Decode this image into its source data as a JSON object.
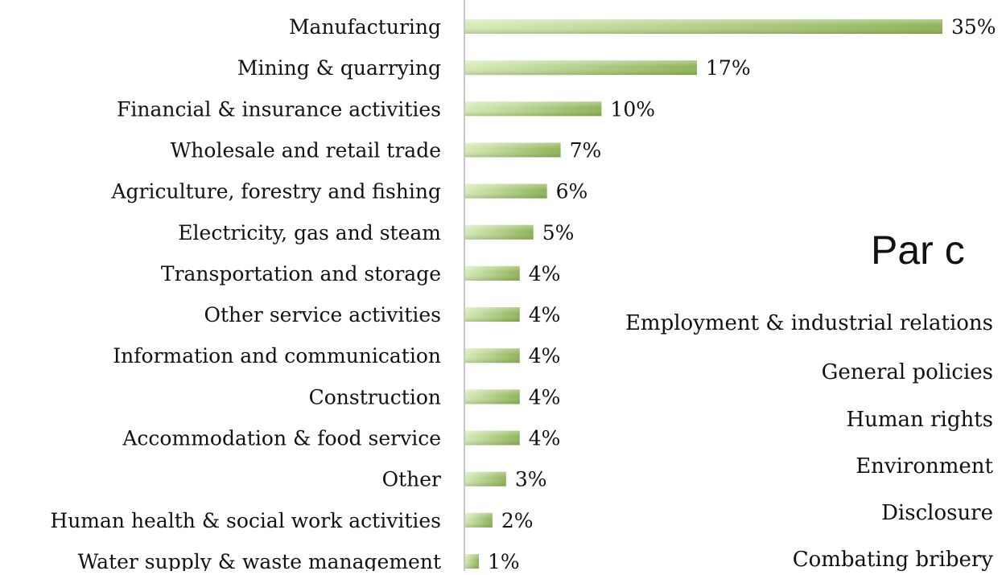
{
  "chart_data": {
    "type": "bar",
    "orientation": "horizontal",
    "categories": [
      "Manufacturing",
      "Mining & quarrying",
      "Financial & insurance activities",
      "Wholesale and retail trade",
      "Agriculture, forestry and fishing",
      "Electricity, gas and steam",
      "Transportation and storage",
      "Other service activities",
      "Information and communication",
      "Construction",
      "Accommodation & food service",
      "Other",
      "Human health & social work activities",
      "Water supply & waste management"
    ],
    "values": [
      35,
      17,
      10,
      7,
      6,
      5,
      4,
      4,
      4,
      4,
      4,
      3,
      2,
      1
    ],
    "data_labels": [
      "35%",
      "17%",
      "10%",
      "7%",
      "6%",
      "5%",
      "4%",
      "4%",
      "4%",
      "4%",
      "4%",
      "3%",
      "2%",
      "1%"
    ],
    "unit": "%",
    "xlim": [
      0,
      35
    ],
    "grid": false,
    "colors": {
      "bar_dark": "#8db255",
      "bar_light": "#d6ebb7",
      "axis": "#8c8c8c"
    }
  },
  "overlay": {
    "title": "Par c",
    "topics": [
      "Employment & industrial relations",
      "General policies",
      "Human rights",
      "Environment",
      "Disclosure",
      "Combating bribery"
    ]
  }
}
